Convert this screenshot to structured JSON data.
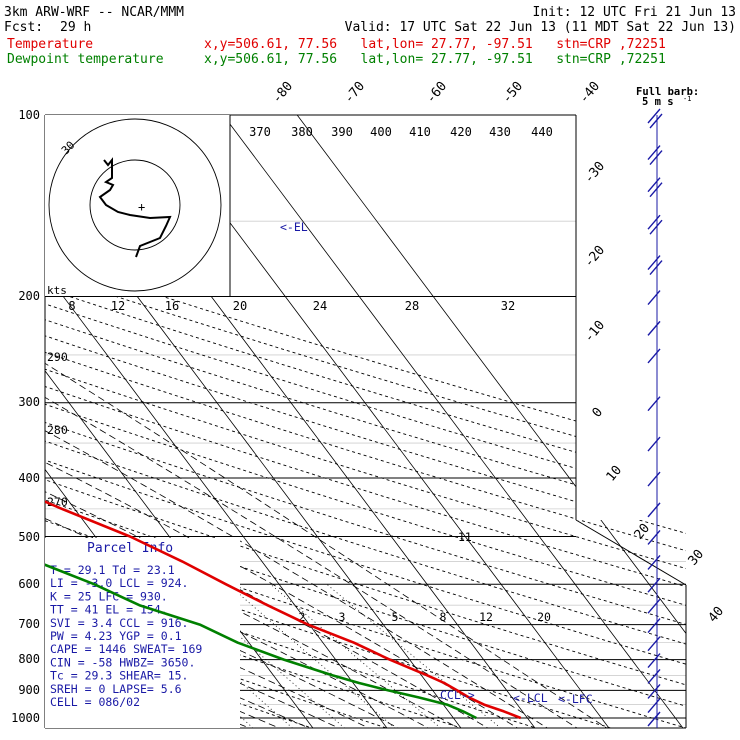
{
  "header": {
    "model": "3km ARW-WRF -- NCAR/MMM",
    "init": "Init: 12 UTC Fri 21 Jun 13",
    "fcst_label": "Fcst:",
    "fcst_value": "29 h",
    "valid": "Valid: 17 UTC Sat 22 Jun 13 (11 MDT Sat 22 Jun 13)",
    "temperature_label": "Temperature",
    "temperature_info": "x,y=506.61, 77.56   lat,lon= 27.77, -97.51   stn=CRP ,72251",
    "dewpoint_label": "Dewpoint temperature",
    "dewpoint_info": "x,y=506.61, 77.56   lat,lon= 27.77, -97.51   stn=CRP ,72251"
  },
  "barb_legend": {
    "line1": "Full barb:",
    "line2": "5 m s",
    "unit_sup": "-1"
  },
  "colors": {
    "temperature": "#e00000",
    "dewpoint": "#008000",
    "parcel": "#1a1aa6",
    "barbs": "#1a1aa6"
  },
  "levels": {
    "l100": "100",
    "l200": "200",
    "l300": "300",
    "l400": "400",
    "l500": "500",
    "l600": "600",
    "l700": "700",
    "l800": "800",
    "l900": "900",
    "l1000": "1000"
  },
  "skew_temps": {
    "m80": "-80",
    "m70": "-70",
    "m60": "-60",
    "m50": "-50",
    "m40": "-40",
    "m30": "-30",
    "m20": "-20",
    "m10": "-10",
    "z0": "0",
    "p10": "10",
    "p20": "20",
    "p30": "30",
    "p40": "40"
  },
  "theta_top": [
    "370",
    "380",
    "390",
    "400",
    "410",
    "420",
    "430",
    "440"
  ],
  "hodograph": {
    "kts_label": "kts",
    "speed_ticks": [
      "8",
      "12",
      "16",
      "20",
      "24",
      "28",
      "32"
    ],
    "ring_label": "30"
  },
  "theta_left": {
    "a": "290",
    "b": "280",
    "c": "270"
  },
  "mixing_ratio": [
    "2",
    "3",
    "5",
    "8",
    "12",
    "20"
  ],
  "annotations": {
    "el": "<-EL",
    "lcl": "<-LCL",
    "lfc": "<-LFC",
    "ccl": "CCL->",
    "eleven": "11"
  },
  "parcel_info": {
    "title": "Parcel Info",
    "rows": [
      "T   =    29.1  Td =   23.1",
      "LI  =    -3.0  LCL =  924.",
      "K   =     25  LFC =  930.",
      "TT  =     41  EL  =  154.",
      "SVI =    3.4  CCL =  916.",
      "PW  =   4.23  YGP =   0.1",
      "CAPE =  1446  SWEAT=  169",
      "CIN  =   -58  HWBZ= 3650.",
      "Tc  =   29.3  SHEAR=  15.",
      "SREH =     0  LAPSE=  5.6",
      "CELL = 086/02"
    ]
  },
  "chart_data": {
    "type": "line",
    "title": "",
    "xlabel": "",
    "ylabel": "",
    "y_scale": "log-pressure",
    "y_ticks_hpa": [
      100,
      200,
      300,
      400,
      500,
      600,
      700,
      800,
      900,
      1000
    ],
    "series": [
      {
        "name": "Temperature",
        "pressure_hpa": [
          1000,
          975,
          950,
          925,
          900,
          875,
          850,
          800,
          750,
          700,
          650,
          600,
          550,
          500,
          450,
          400,
          350,
          300,
          250,
          200,
          175,
          150,
          130,
          115,
          100
        ],
        "temperature_c": [
          29.1,
          27.5,
          25.5,
          24.2,
          23.3,
          22.3,
          20.8,
          17.3,
          14.2,
          9.8,
          6.3,
          2.8,
          -0.8,
          -5.3,
          -11.7,
          -18.3,
          -27.0,
          -37.0,
          -48.0,
          -60.0,
          -66.0,
          -71.0,
          -70.0,
          -68.0,
          -66.0
        ]
      },
      {
        "name": "Dewpoint temperature",
        "pressure_hpa": [
          1000,
          975,
          950,
          925,
          900,
          875,
          850,
          800,
          750,
          700,
          650,
          600,
          550,
          500,
          450,
          400,
          350,
          300,
          250,
          200,
          175,
          150,
          130,
          115,
          100
        ],
        "temperature_c": [
          23.1,
          22.0,
          20.5,
          17.5,
          14.0,
          10.8,
          8.0,
          3.0,
          -1.5,
          -4.8,
          -11.0,
          -15.0,
          -20.5,
          -21.5,
          -23.0,
          -33.0,
          -52.0,
          -47.0,
          -59.0,
          -75.0,
          -81.0,
          -86.0,
          -88.0,
          -89.0,
          -90.0
        ]
      }
    ],
    "barbs": [
      {
        "pressure_hpa": 1000,
        "speed_ms": 2
      },
      {
        "pressure_hpa": 950,
        "speed_ms": 2
      },
      {
        "pressure_hpa": 900,
        "speed_ms": 2
      },
      {
        "pressure_hpa": 850,
        "speed_ms": 4
      },
      {
        "pressure_hpa": 800,
        "speed_ms": 4
      },
      {
        "pressure_hpa": 750,
        "speed_ms": 5
      },
      {
        "pressure_hpa": 700,
        "speed_ms": 5
      },
      {
        "pressure_hpa": 650,
        "speed_ms": 4
      },
      {
        "pressure_hpa": 600,
        "speed_ms": 3
      },
      {
        "pressure_hpa": 550,
        "speed_ms": 3
      },
      {
        "pressure_hpa": 500,
        "speed_ms": 3
      },
      {
        "pressure_hpa": 450,
        "speed_ms": 5
      },
      {
        "pressure_hpa": 400,
        "speed_ms": 5
      },
      {
        "pressure_hpa": 350,
        "speed_ms": 5
      },
      {
        "pressure_hpa": 300,
        "speed_ms": 5
      },
      {
        "pressure_hpa": 250,
        "speed_ms": 5
      },
      {
        "pressure_hpa": 225,
        "speed_ms": 5
      },
      {
        "pressure_hpa": 200,
        "speed_ms": 5
      },
      {
        "pressure_hpa": 175,
        "speed_ms": 10
      },
      {
        "pressure_hpa": 150,
        "speed_ms": 10
      },
      {
        "pressure_hpa": 130,
        "speed_ms": 10
      },
      {
        "pressure_hpa": 115,
        "speed_ms": 10
      },
      {
        "pressure_hpa": 100,
        "speed_ms": 10
      }
    ]
  }
}
